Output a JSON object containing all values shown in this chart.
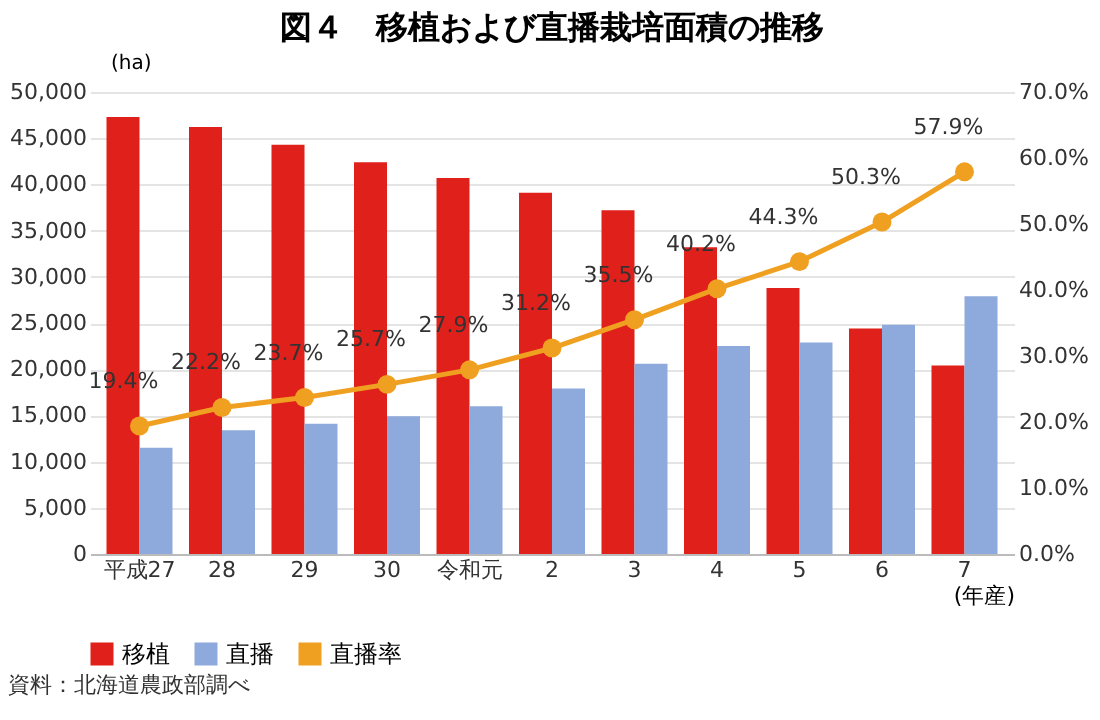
{
  "chart_data": {
    "type": "bar",
    "title": "図４　移植および直播栽培面積の推移",
    "categories": [
      "平成27",
      "28",
      "29",
      "30",
      "令和元",
      "2",
      "3",
      "4",
      "5",
      "6",
      "7"
    ],
    "xlabel": "(年産)",
    "ylabel": "(ha)",
    "series": [
      {
        "name": "移植",
        "color": "#e0201b",
        "values": [
          47300,
          46200,
          44300,
          42400,
          40700,
          39100,
          37200,
          33200,
          28800,
          24400,
          20400
        ]
      },
      {
        "name": "直播",
        "color": "#8ea9db",
        "values": [
          11500,
          13400,
          14100,
          14900,
          16000,
          17900,
          20600,
          22500,
          22900,
          24800,
          27900
        ]
      },
      {
        "name": "直播率",
        "type": "line",
        "axis": "y2",
        "color": "#f0a020",
        "marker": "circle",
        "values": [
          19.4,
          22.2,
          23.7,
          25.7,
          27.9,
          31.2,
          35.5,
          40.2,
          44.3,
          50.3,
          57.9
        ],
        "value_labels": [
          "19.4%",
          "22.2%",
          "23.7%",
          "25.7%",
          "27.9%",
          "31.2%",
          "35.5%",
          "40.2%",
          "44.3%",
          "50.3%",
          "57.9%"
        ]
      }
    ],
    "ylim": [
      0,
      50000
    ],
    "yticks": [
      {
        "value": 0,
        "label": "0"
      },
      {
        "value": 5000,
        "label": "5,000"
      },
      {
        "value": 10000,
        "label": "10,000"
      },
      {
        "value": 15000,
        "label": "15,000"
      },
      {
        "value": 20000,
        "label": "20,000"
      },
      {
        "value": 25000,
        "label": "25,000"
      },
      {
        "value": 30000,
        "label": "30,000"
      },
      {
        "value": 35000,
        "label": "35,000"
      },
      {
        "value": 40000,
        "label": "40,000"
      },
      {
        "value": 45000,
        "label": "45,000"
      },
      {
        "value": 50000,
        "label": "50,000"
      }
    ],
    "y2lim": [
      0,
      70
    ],
    "y2ticks": [
      {
        "value": 0,
        "label": "0.0%"
      },
      {
        "value": 10,
        "label": "10.0%"
      },
      {
        "value": 20,
        "label": "20.0%"
      },
      {
        "value": 30,
        "label": "30.0%"
      },
      {
        "value": 40,
        "label": "40.0%"
      },
      {
        "value": 50,
        "label": "50.0%"
      },
      {
        "value": 60,
        "label": "60.0%"
      },
      {
        "value": 70,
        "label": "70.0%"
      }
    ],
    "grid": "y",
    "legend": "bottom",
    "annotations": [
      "資料：北海道農政部調べ"
    ]
  }
}
